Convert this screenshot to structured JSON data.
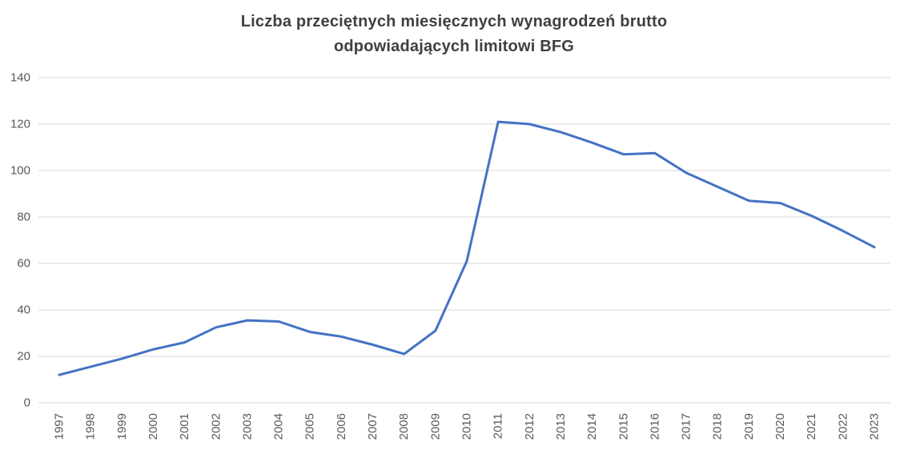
{
  "title_lines": [
    "Liczba przeciętnych miesięcznych wynagrodzeń brutto",
    "odpowiadających limitowi BFG"
  ],
  "colors": {
    "series_blue": "#4472C4",
    "gridline": "#D9D9D9",
    "axis_text": "#595959",
    "title_text": "#404040"
  },
  "chart_data": {
    "type": "line",
    "title": "Liczba przeciętnych miesięcznych wynagrodzeń brutto odpowiadających limitowi BFG",
    "xlabel": "",
    "ylabel": "",
    "legend": "none",
    "grid": true,
    "ylim": [
      0,
      140
    ],
    "ytick_step": 20,
    "yticks": [
      0,
      20,
      40,
      60,
      80,
      100,
      120,
      140
    ],
    "x": [
      "1997",
      "1998",
      "1999",
      "2000",
      "2001",
      "2002",
      "2003",
      "2004",
      "2005",
      "2006",
      "2007",
      "2008",
      "2009",
      "2010",
      "2011",
      "2012",
      "2013",
      "2014",
      "2015",
      "2016",
      "2017",
      "2018",
      "2019",
      "2020",
      "2021",
      "2022",
      "2023"
    ],
    "values": [
      12,
      15.5,
      19,
      23,
      26,
      32.5,
      35.5,
      35,
      30.5,
      28.5,
      25,
      21,
      31,
      61,
      121,
      120,
      116.5,
      112,
      107,
      107.5,
      99,
      93,
      87,
      86,
      80.5,
      74,
      67
    ]
  }
}
